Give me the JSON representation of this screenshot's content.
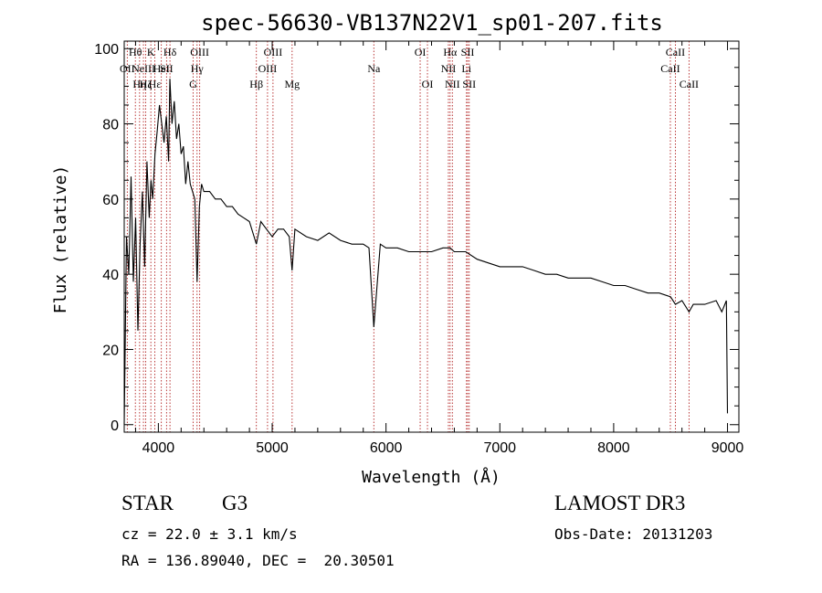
{
  "chart_data": {
    "type": "line",
    "title": "spec-56630-VB137N22V1_sp01-207.fits",
    "xlabel": "Wavelength (Å)",
    "ylabel": "Flux (relative)",
    "xlim": [
      3700,
      9100
    ],
    "ylim": [
      -2,
      102
    ],
    "xticks": [
      4000,
      5000,
      6000,
      7000,
      8000,
      9000
    ],
    "yticks": [
      0,
      20,
      40,
      60,
      80,
      100
    ],
    "series": [
      {
        "name": "spectrum",
        "x": [
          3700,
          3720,
          3740,
          3760,
          3780,
          3800,
          3820,
          3840,
          3860,
          3880,
          3900,
          3920,
          3935,
          3950,
          3970,
          3990,
          4010,
          4030,
          4050,
          4070,
          4090,
          4101,
          4120,
          4140,
          4160,
          4180,
          4200,
          4220,
          4240,
          4260,
          4280,
          4300,
          4320,
          4340,
          4360,
          4380,
          4400,
          4450,
          4500,
          4550,
          4600,
          4650,
          4700,
          4750,
          4800,
          4861,
          4900,
          4950,
          5000,
          5050,
          5100,
          5150,
          5175,
          5200,
          5300,
          5400,
          5500,
          5600,
          5700,
          5800,
          5850,
          5893,
          5950,
          6000,
          6100,
          6200,
          6300,
          6400,
          6500,
          6563,
          6600,
          6700,
          6800,
          6900,
          7000,
          7100,
          7200,
          7300,
          7400,
          7500,
          7600,
          7700,
          7800,
          7900,
          8000,
          8100,
          8200,
          8300,
          8400,
          8500,
          8542,
          8600,
          8662,
          8700,
          8800,
          8900,
          8950,
          8990,
          9000
        ],
        "y": [
          0,
          50,
          40,
          66,
          38,
          55,
          25,
          48,
          62,
          42,
          70,
          55,
          65,
          60,
          72,
          78,
          85,
          80,
          75,
          82,
          70,
          92,
          80,
          86,
          76,
          80,
          72,
          74,
          64,
          70,
          64,
          62,
          60,
          38,
          58,
          64,
          62,
          62,
          60,
          60,
          58,
          58,
          56,
          55,
          54,
          48,
          54,
          52,
          50,
          52,
          52,
          50,
          41,
          52,
          50,
          49,
          51,
          49,
          48,
          48,
          47,
          26,
          48,
          47,
          47,
          46,
          46,
          46,
          47,
          47,
          46,
          46,
          44,
          43,
          42,
          42,
          42,
          41,
          40,
          40,
          39,
          39,
          39,
          38,
          37,
          37,
          36,
          35,
          35,
          34,
          32,
          33,
          30,
          32,
          32,
          33,
          30,
          33,
          3
        ]
      }
    ],
    "lines": [
      {
        "wl": 3727,
        "label": "OII",
        "row": 1
      },
      {
        "wl": 3798,
        "label": "Hθ",
        "row": 0
      },
      {
        "wl": 3835,
        "label": "Hη",
        "row": 2
      },
      {
        "wl": 3869,
        "label": "NeIII",
        "row": 1
      },
      {
        "wl": 3889,
        "label": "Hζ",
        "row": 2
      },
      {
        "wl": 3934,
        "label": "K",
        "row": 0
      },
      {
        "wl": 3969,
        "label": "Hε",
        "row": 2
      },
      {
        "wl": 4026,
        "label": "HeI",
        "row": 1
      },
      {
        "wl": 4072,
        "label": "SII",
        "row": 1
      },
      {
        "wl": 4102,
        "label": "Hδ",
        "row": 0
      },
      {
        "wl": 4305,
        "label": "G",
        "row": 2
      },
      {
        "wl": 4340,
        "label": "Hγ",
        "row": 1
      },
      {
        "wl": 4363,
        "label": "OIII",
        "row": 0
      },
      {
        "wl": 4861,
        "label": "Hβ",
        "row": 2
      },
      {
        "wl": 4959,
        "label": "OIII",
        "row": 1
      },
      {
        "wl": 5007,
        "label": "OIII",
        "row": 0
      },
      {
        "wl": 5175,
        "label": "Mg",
        "row": 2
      },
      {
        "wl": 5893,
        "label": "Na",
        "row": 1
      },
      {
        "wl": 6300,
        "label": "OI",
        "row": 0
      },
      {
        "wl": 6364,
        "label": "OI",
        "row": 2
      },
      {
        "wl": 6548,
        "label": "NII",
        "row": 1
      },
      {
        "wl": 6563,
        "label": "Hα",
        "row": 0
      },
      {
        "wl": 6583,
        "label": "NII",
        "row": 2
      },
      {
        "wl": 6707,
        "label": "Li",
        "row": 1
      },
      {
        "wl": 6717,
        "label": "SII",
        "row": 0
      },
      {
        "wl": 6731,
        "label": "SII",
        "row": 2
      },
      {
        "wl": 8498,
        "label": "CaII",
        "row": 1
      },
      {
        "wl": 8542,
        "label": "CaII",
        "row": 0
      },
      {
        "wl": 8662,
        "label": "CaII",
        "row": 2
      }
    ]
  },
  "info": {
    "object_class": "STAR",
    "subclass": "G3",
    "cz": "cz = 22.0 ± 3.1 km/s",
    "coords": "RA = 136.89040, DEC =  20.30501",
    "survey": "LAMOST DR3",
    "obs_date": "Obs-Date: 20131203"
  },
  "colors": {
    "axis": "#000000",
    "spectrum": "#000000",
    "line_marker": "#b22222"
  }
}
